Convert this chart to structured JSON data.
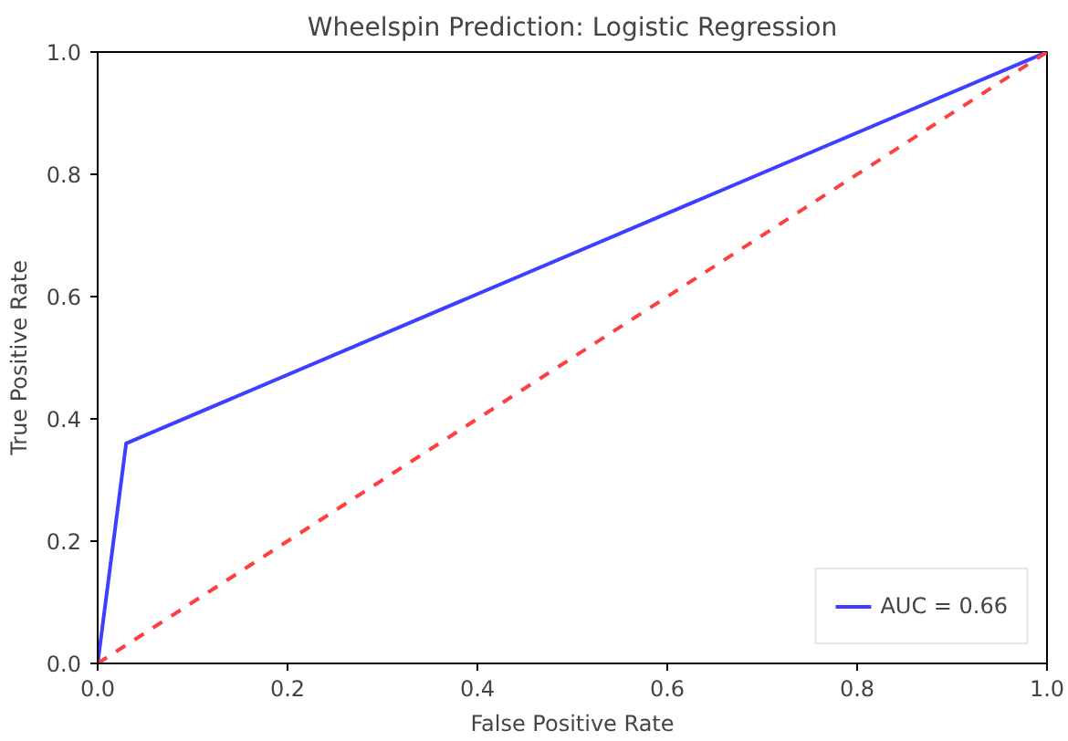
{
  "chart_data": {
    "type": "line",
    "title": "Wheelspin Prediction: Logistic Regression",
    "xlabel": "False Positive Rate",
    "ylabel": "True Positive Rate",
    "series": [
      {
        "name": "AUC = 0.66",
        "color": "#3f3fff",
        "x": [
          0,
          0.03,
          1
        ],
        "values": [
          0,
          0.36,
          1
        ],
        "line_style": "solid"
      },
      {
        "color": "#ff3f3f",
        "x": [
          0,
          1
        ],
        "values": [
          0,
          1
        ],
        "line_style": "dashed"
      }
    ],
    "xlim": [
      0,
      1
    ],
    "ylim": [
      0,
      1
    ],
    "xticks": [
      {
        "value": 0,
        "label": "0.0"
      },
      {
        "value": 0.2,
        "label": "0.2"
      },
      {
        "value": 0.4,
        "label": "0.4"
      },
      {
        "value": 0.6,
        "label": "0.6"
      },
      {
        "value": 0.8,
        "label": "0.8"
      },
      {
        "value": 1,
        "label": "1.0"
      }
    ],
    "yticks": [
      {
        "value": 0,
        "label": "0.0"
      },
      {
        "value": 0.2,
        "label": "0.2"
      },
      {
        "value": 0.4,
        "label": "0.4"
      },
      {
        "value": 0.6,
        "label": "0.6"
      },
      {
        "value": 0.8,
        "label": "0.8"
      },
      {
        "value": 1,
        "label": "1.0"
      }
    ],
    "grid": false,
    "legend": "bottom right"
  }
}
